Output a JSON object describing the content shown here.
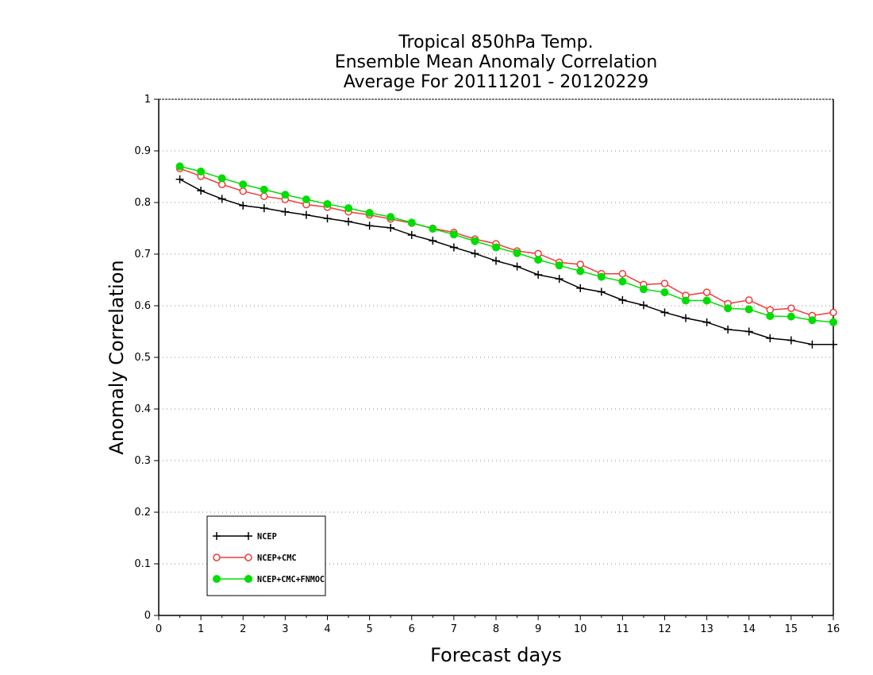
{
  "chart_data": {
    "type": "line",
    "title": [
      "Tropical 850hPa Temp.",
      "Ensemble Mean Anomaly Correlation",
      "Average For 20111201 - 20120229"
    ],
    "xlabel": "Forecast days",
    "ylabel": "Anomaly Correlation",
    "xlim": [
      0,
      16
    ],
    "ylim": [
      0,
      1
    ],
    "xticks": [
      "0",
      "1",
      "2",
      "3",
      "4",
      "5",
      "6",
      "7",
      "8",
      "9",
      "10",
      "11",
      "12",
      "13",
      "14",
      "15",
      "16"
    ],
    "yticks": [
      "0",
      "0.1",
      "0.2",
      "0.3",
      "0.4",
      "0.5",
      "0.6",
      "0.7",
      "0.8",
      "0.9",
      "1"
    ],
    "grid": "dotted horizontal",
    "legend_position": "bottom-left",
    "x": [
      0.5,
      1,
      1.5,
      2,
      2.5,
      3,
      3.5,
      4,
      4.5,
      5,
      5.5,
      6,
      6.5,
      7,
      7.5,
      8,
      8.5,
      9,
      9.5,
      10,
      10.5,
      11,
      11.5,
      12,
      12.5,
      13,
      13.5,
      14,
      14.5,
      15,
      15.5,
      16
    ],
    "series": [
      {
        "name": "NCEP",
        "color": "#000000",
        "marker": "plus",
        "values": [
          0.845,
          0.823,
          0.807,
          0.794,
          0.789,
          0.782,
          0.776,
          0.769,
          0.763,
          0.755,
          0.751,
          0.737,
          0.726,
          0.713,
          0.701,
          0.687,
          0.676,
          0.66,
          0.652,
          0.634,
          0.627,
          0.611,
          0.601,
          0.587,
          0.576,
          0.568,
          0.554,
          0.55,
          0.537,
          0.533,
          0.525,
          0.525
        ]
      },
      {
        "name": "NCEP+CMC",
        "color": "#ee3b3b",
        "marker": "open-circle",
        "values": [
          0.866,
          0.851,
          0.835,
          0.822,
          0.812,
          0.806,
          0.796,
          0.791,
          0.782,
          0.776,
          0.768,
          0.76,
          0.75,
          0.742,
          0.729,
          0.72,
          0.706,
          0.701,
          0.684,
          0.68,
          0.662,
          0.662,
          0.641,
          0.643,
          0.62,
          0.626,
          0.604,
          0.611,
          0.592,
          0.595,
          0.581,
          0.587
        ]
      },
      {
        "name": "NCEP+CMC+FNMOC",
        "color": "#00dd00",
        "marker": "filled-circle",
        "values": [
          0.87,
          0.86,
          0.847,
          0.835,
          0.825,
          0.815,
          0.806,
          0.797,
          0.789,
          0.78,
          0.772,
          0.761,
          0.749,
          0.738,
          0.725,
          0.713,
          0.702,
          0.689,
          0.678,
          0.667,
          0.656,
          0.647,
          0.632,
          0.626,
          0.61,
          0.61,
          0.595,
          0.593,
          0.58,
          0.579,
          0.572,
          0.568
        ]
      }
    ]
  }
}
